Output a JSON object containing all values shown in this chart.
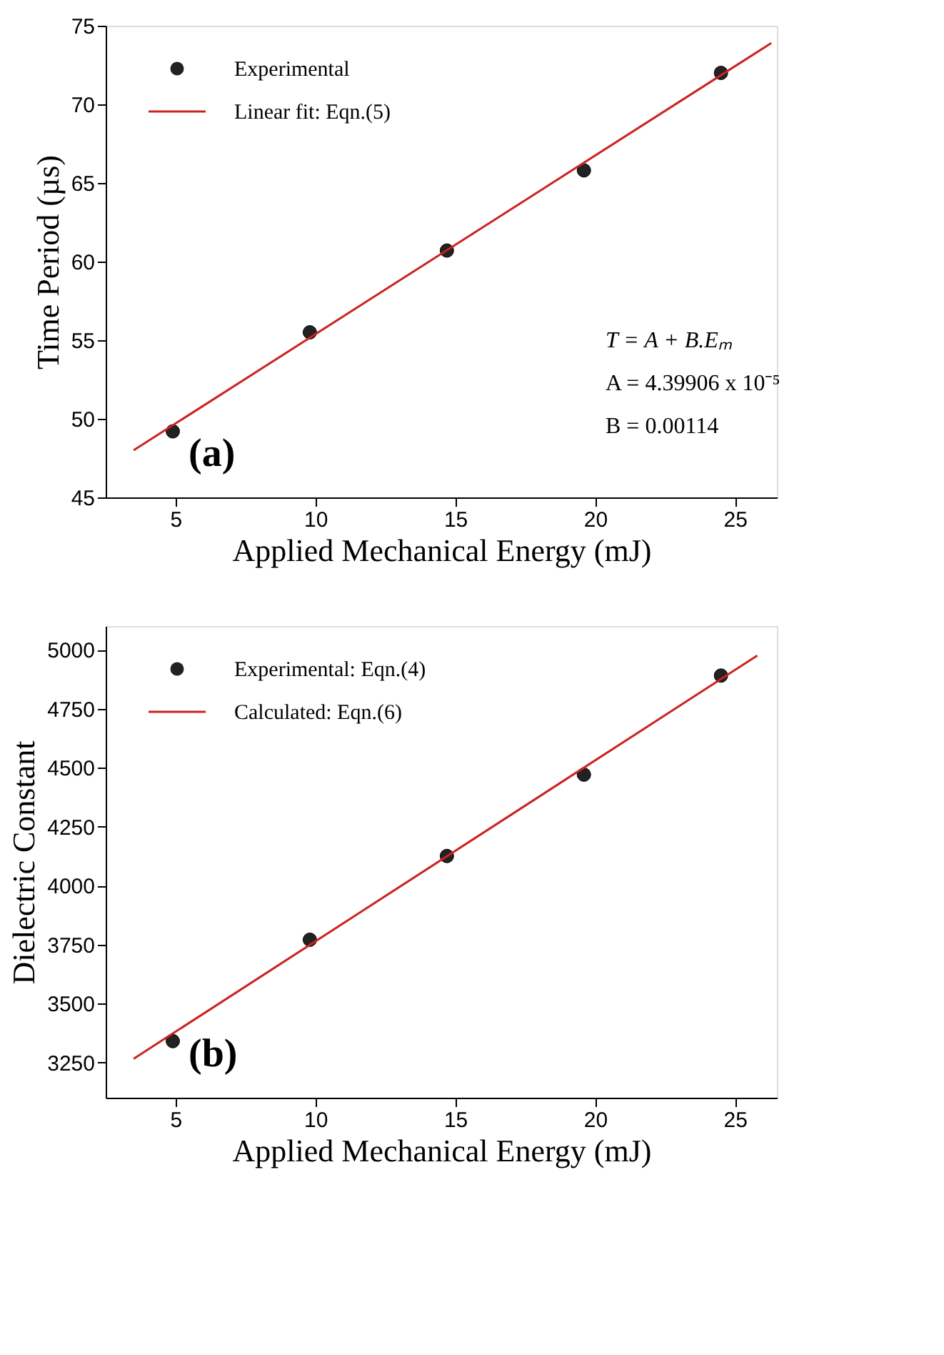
{
  "chart_data": [
    {
      "type": "scatter",
      "xlabel": "Applied Mechanical Energy (mJ)",
      "ylabel": "Time Period (µs)",
      "xlim": [
        2.5,
        26.5
      ],
      "xticks": [
        5,
        10,
        15,
        20,
        25
      ],
      "ylim": [
        45,
        75
      ],
      "yticks": [
        45,
        50,
        55,
        60,
        65,
        70,
        75
      ],
      "grid": false,
      "legend": "top left",
      "series": [
        {
          "name": "Experimental",
          "marker": "circle",
          "color": "#222222",
          "x": [
            4.9,
            9.8,
            14.7,
            19.6,
            24.5
          ],
          "values": [
            49.2,
            55.5,
            60.7,
            65.8,
            72.0
          ]
        },
        {
          "name": "Linear fit: Eqn.(5)",
          "type": "line",
          "marker": "none",
          "line_style": "solid",
          "color": "#cc2222",
          "x": [
            3.5,
            26.3
          ],
          "values": [
            48.0,
            73.9
          ]
        }
      ],
      "annotations": [
        "(a)",
        "T = A + B.Eₘ",
        "A = 4.39906 x 10⁻⁵",
        "B = 0.00114"
      ]
    },
    {
      "type": "scatter",
      "xlabel": "Applied Mechanical Energy (mJ)",
      "ylabel": "Dielectric Constant",
      "xlim": [
        2.5,
        26.5
      ],
      "xticks": [
        5,
        10,
        15,
        20,
        25
      ],
      "ylim": [
        3100,
        5100
      ],
      "yticks": [
        3250,
        3500,
        3750,
        4000,
        4250,
        4500,
        4750,
        5000
      ],
      "grid": false,
      "legend": "top left",
      "series": [
        {
          "name": "Experimental: Eqn.(4)",
          "marker": "circle",
          "color": "#222222",
          "x": [
            4.9,
            9.8,
            14.7,
            19.6,
            24.5
          ],
          "values": [
            3340,
            3770,
            4125,
            4470,
            4890
          ]
        },
        {
          "name": "Calculated: Eqn.(6)",
          "type": "line",
          "marker": "none",
          "line_style": "solid",
          "color": "#cc2222",
          "x": [
            3.5,
            25.8
          ],
          "values": [
            3265,
            4975
          ]
        }
      ],
      "annotations": [
        "(b)"
      ]
    }
  ]
}
